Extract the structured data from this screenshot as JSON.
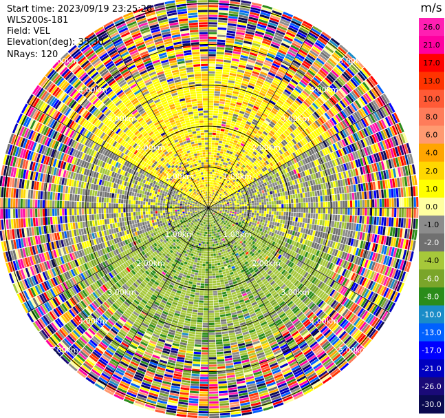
{
  "header": {
    "start_time": "Start time: 2023/09/19 23:25:28",
    "instrument": "WLS200s-181",
    "field": "Field: VEL",
    "elevation": "Elevation(deg): 35.30",
    "nrays": "NRays: 120"
  },
  "chart_data": {
    "type": "ppi",
    "field": "VEL",
    "nrays": 120,
    "range_rings_km": [
      1.0,
      2.0,
      3.0,
      4.0,
      5.0
    ],
    "range_ring_labels": [
      "1.00km",
      "2.00km",
      "3.00km",
      "4.00km",
      "5.00km"
    ],
    "max_range_km": 5.1,
    "radial_lines_deg": [
      0,
      30,
      60,
      90,
      120,
      150,
      180,
      210,
      240,
      270,
      300,
      330
    ],
    "colorbar": {
      "unit": "m/s",
      "ticks": [
        "26.0",
        "21.0",
        "17.0",
        "13.0",
        "10.0",
        "8.0",
        "6.0",
        "4.0",
        "2.0",
        "1.0",
        "0.0",
        "-1.0",
        "-2.0",
        "-4.0",
        "-6.0",
        "-8.0",
        "-10.0",
        "-13.0",
        "-17.0",
        "-21.0",
        "-26.0",
        "-30.0"
      ],
      "colors": [
        "#ff1fb2",
        "#ff00a0",
        "#ff0000",
        "#ff3300",
        "#ff5a36",
        "#ff7c5a",
        "#ff9a70",
        "#ffa500",
        "#ffd700",
        "#ffff00",
        "#ffffa0",
        "#8c8c8c",
        "#707070",
        "#a6c83a",
        "#7aa52a",
        "#2a8c1a",
        "#1a8cc8",
        "#0060ff",
        "#0000ff",
        "#0000c0",
        "#1a0a78",
        "#0a0a50"
      ]
    },
    "sectors": [
      {
        "from_deg": 300,
        "to_deg": 60,
        "sign": "positive",
        "value_ms": 2.0
      },
      {
        "from_deg": 60,
        "to_deg": 110,
        "sign": "mixed",
        "value_ms": 0.0
      },
      {
        "from_deg": 110,
        "to_deg": 250,
        "sign": "negative",
        "value_ms": -2.0
      },
      {
        "from_deg": 250,
        "to_deg": 300,
        "sign": "mixed",
        "value_ms": 0.0
      }
    ],
    "noise_start_km": 3.4
  }
}
